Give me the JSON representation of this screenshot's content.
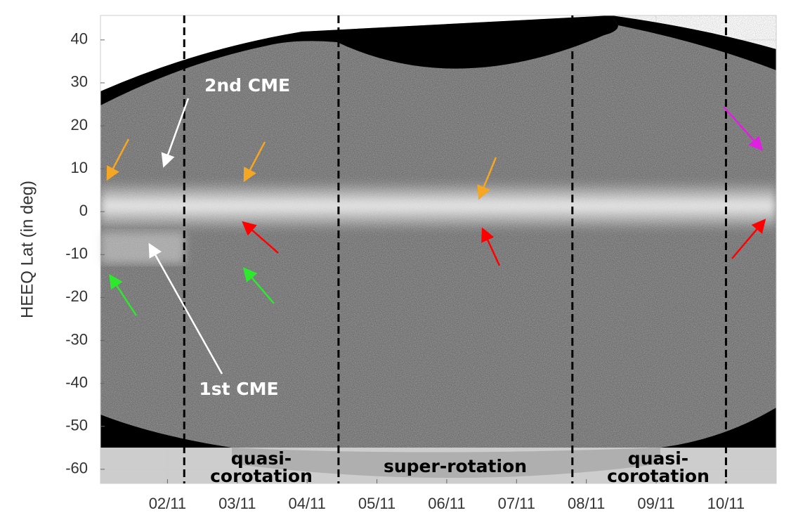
{
  "chart_data": {
    "type": "image",
    "y_label": "HEEQ Lat (in deg)",
    "ylim": [
      -63.3,
      45.7
    ],
    "yticks": [
      -60,
      -50,
      -40,
      -30,
      -20,
      -10,
      0,
      10,
      20,
      30,
      40
    ],
    "xlim": [
      1.04,
      10.72
    ],
    "xticks": [
      {
        "value": 2,
        "label": "02/11"
      },
      {
        "value": 3,
        "label": "03/11"
      },
      {
        "value": 4,
        "label": "04/11"
      },
      {
        "value": 5,
        "label": "05/11"
      },
      {
        "value": 6,
        "label": "06/11"
      },
      {
        "value": 7,
        "label": "07/11"
      },
      {
        "value": 8,
        "label": "08/11"
      },
      {
        "value": 9,
        "label": "09/11"
      },
      {
        "value": 10,
        "label": "10/11"
      }
    ],
    "vlines": [
      2.24,
      4.45,
      7.8,
      10.0
    ],
    "grid": true,
    "annotations": [
      "2nd CME",
      "1st CME"
    ],
    "regions": [
      [
        "quasi-",
        "corotation"
      ],
      [
        "super-rotation"
      ],
      [
        "quasi-",
        "corotation"
      ]
    ]
  }
}
